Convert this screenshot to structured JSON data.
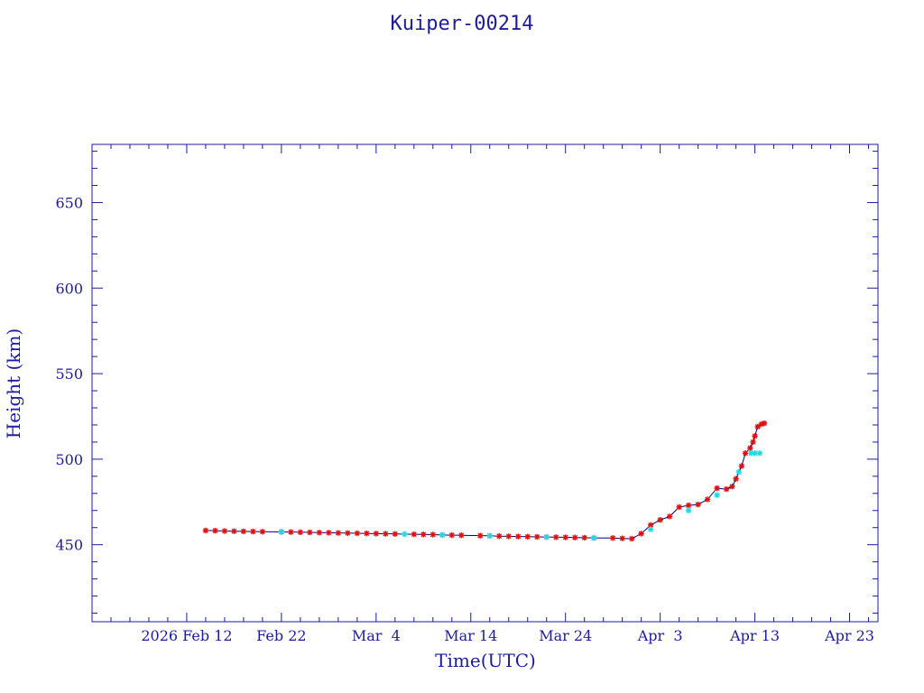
{
  "chart_data": {
    "type": "scatter",
    "title": "Kuiper-00214",
    "xlabel": "Time(UTC)",
    "ylabel": "Height (km)",
    "x_tick_labels": [
      "2026 Feb 12",
      "Feb 22",
      "Mar  4",
      "Mar 14",
      "Mar 24",
      "Apr  3",
      "Apr 13",
      "Apr 23"
    ],
    "y_tick_labels": [
      "450",
      "500",
      "550",
      "600",
      "650"
    ],
    "xlim": [
      "2026-02-02",
      "2026-04-26"
    ],
    "ylim": [
      405,
      684
    ],
    "grid": false,
    "colors": {
      "axis": "#1c1c9c",
      "series_main": "#dd1111",
      "series_alt": "#22d8e6",
      "connector": "#000080"
    },
    "series": [
      {
        "marker": "asterisk",
        "color": "#dd1111",
        "points": [
          [
            "2026-02-14",
            458.3
          ],
          [
            "2026-02-15",
            458.2
          ],
          [
            "2026-02-16",
            458.0
          ],
          [
            "2026-02-17",
            457.9
          ],
          [
            "2026-02-18",
            457.8
          ],
          [
            "2026-02-19",
            457.7
          ],
          [
            "2026-02-20",
            457.6
          ],
          [
            "2026-02-22",
            457.5
          ],
          [
            "2026-02-23",
            457.4
          ],
          [
            "2026-02-24",
            457.3
          ],
          [
            "2026-02-25",
            457.2
          ],
          [
            "2026-02-26",
            457.1
          ],
          [
            "2026-02-27",
            457.0
          ],
          [
            "2026-02-28",
            456.9
          ],
          [
            "2026-03-01",
            456.8
          ],
          [
            "2026-03-02",
            456.7
          ],
          [
            "2026-03-03",
            456.6
          ],
          [
            "2026-03-04",
            456.5
          ],
          [
            "2026-03-05",
            456.4
          ],
          [
            "2026-03-06",
            456.3
          ],
          [
            "2026-03-08",
            456.1
          ],
          [
            "2026-03-09",
            456.0
          ],
          [
            "2026-03-10",
            455.9
          ],
          [
            "2026-03-11",
            455.7
          ],
          [
            "2026-03-12",
            455.6
          ],
          [
            "2026-03-13",
            455.5
          ],
          [
            "2026-03-15",
            455.3
          ],
          [
            "2026-03-16",
            455.2
          ],
          [
            "2026-03-17",
            455.0
          ],
          [
            "2026-03-18",
            454.9
          ],
          [
            "2026-03-19",
            454.8
          ],
          [
            "2026-03-20",
            454.7
          ],
          [
            "2026-03-21",
            454.6
          ],
          [
            "2026-03-22",
            454.5
          ],
          [
            "2026-03-23",
            454.4
          ],
          [
            "2026-03-24",
            454.3
          ],
          [
            "2026-03-25",
            454.2
          ],
          [
            "2026-03-26",
            454.1
          ],
          [
            "2026-03-27",
            454.0
          ],
          [
            "2026-03-29",
            453.9
          ],
          [
            "2026-03-30",
            453.7
          ],
          [
            "2026-03-31",
            453.5
          ],
          [
            "2026-04-01",
            456.5
          ],
          [
            "2026-04-02",
            461.5
          ],
          [
            "2026-04-03",
            464.5
          ],
          [
            "2026-04-04",
            466.5
          ],
          [
            "2026-04-05",
            472.0
          ],
          [
            "2026-04-06",
            473.0
          ],
          [
            "2026-04-07",
            473.5
          ],
          [
            "2026-04-08",
            476.5
          ],
          [
            "2026-04-09",
            483.0
          ],
          [
            "2026-04-10",
            482.5
          ],
          [
            "2026-04-10.6",
            484.0
          ],
          [
            "2026-04-11",
            488.5
          ],
          [
            "2026-04-11.6",
            496.0
          ],
          [
            "2026-04-12",
            503.5
          ],
          [
            "2026-04-12.5",
            506.5
          ],
          [
            "2026-04-12.8",
            510.0
          ],
          [
            "2026-04-13",
            513.5
          ],
          [
            "2026-04-13.3",
            519.0
          ],
          [
            "2026-04-13.7",
            520.5
          ],
          [
            "2026-04-14",
            521.0
          ]
        ]
      },
      {
        "marker": "asterisk",
        "color": "#22d8e6",
        "points": [
          [
            "2026-02-22",
            457.5
          ],
          [
            "2026-03-07",
            456.2
          ],
          [
            "2026-03-11",
            455.7
          ],
          [
            "2026-03-16",
            455.2
          ],
          [
            "2026-03-22",
            454.5
          ],
          [
            "2026-03-27",
            454.0
          ],
          [
            "2026-04-02",
            459.0
          ],
          [
            "2026-04-06",
            470.0
          ],
          [
            "2026-04-09",
            479.0
          ],
          [
            "2026-04-11.3",
            492.5
          ],
          [
            "2026-04-12.6",
            503.5
          ],
          [
            "2026-04-13.0",
            503.5
          ],
          [
            "2026-04-13.5",
            503.5
          ]
        ]
      }
    ]
  }
}
